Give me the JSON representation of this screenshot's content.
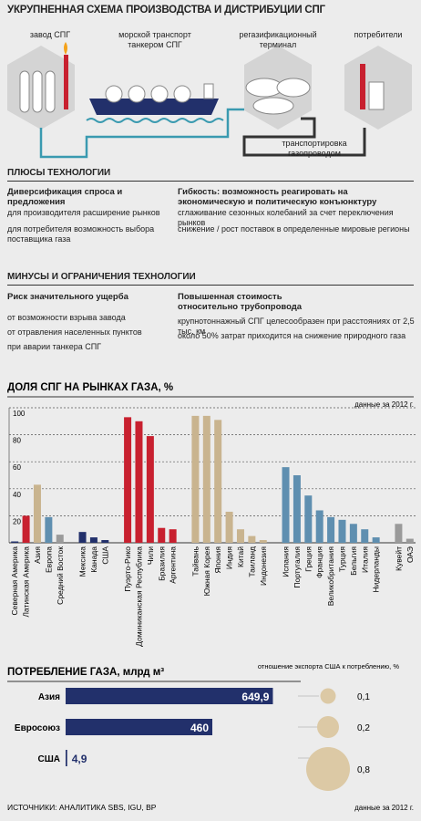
{
  "header": {
    "title": "УКРУПНЕННАЯ СХЕМА ПРОИЗВОДСТВА И ДИСТРИБУЦИИ СПГ"
  },
  "scheme": {
    "nodes": [
      {
        "label": "завод СПГ"
      },
      {
        "label": "морской транспорт танкером СПГ"
      },
      {
        "label": "регазификационный терминал"
      },
      {
        "label": "потребители"
      },
      {
        "label": "транспортировка газопроводом"
      }
    ]
  },
  "pros": {
    "title": "ПЛЮСЫ ТЕХНОЛОГИИ",
    "columns": [
      {
        "heading": "Диверсификация спроса и предложения",
        "items": [
          "для производителя расширение рынков",
          "для потребителя возможность выбора поставщика газа"
        ]
      },
      {
        "heading": "Гибкость: возможность реагировать на экономическую и политическую конъюнктуру",
        "items": [
          "сглаживание сезонных колебаний за счет переключения рынков",
          "снижение / рост поставок в определенные мировые регионы"
        ]
      }
    ]
  },
  "cons": {
    "title": "МИНУСЫ И ОГРАНИЧЕНИЯ ТЕХНОЛОГИИ",
    "columns": [
      {
        "heading": "Риск значительного ущерба",
        "items": [
          "от возможности взрыва завода",
          "от отравления населенных пунктов",
          "при аварии танкера СПГ"
        ]
      },
      {
        "heading": "Повышенная стоимость относительно трубопровода",
        "items": [
          "крупнотоннажный СПГ целесообразен при расстояниях от 2,5 тыс. км",
          "около 50% затрат приходится на снижение природного газа"
        ]
      }
    ]
  },
  "chart_data": [
    {
      "type": "bar",
      "title": "ДОЛЯ СПГ НА РЫНКАХ ГАЗА, %",
      "note": "данные за 2012 г.",
      "categories": [
        "Северная Америка",
        "Латинская Америка",
        "Азия",
        "Европа",
        "Средний Восток",
        null,
        "Мексика",
        "Канада",
        "США",
        null,
        "Пуэрто-Рико",
        "Доминиканская Республика",
        "Чили",
        "Бразилия",
        "Аргентина",
        null,
        "Тайвань",
        "Южная Корея",
        "Япония",
        "Индия",
        "Китай",
        "Таиланд",
        "Индонезия",
        null,
        "Испания",
        "Португалия",
        "Греция",
        "Франция",
        "Великобритания",
        "Турция",
        "Бельгия",
        "Италия",
        "Нидерланды",
        null,
        "Кувейт",
        "ОАЭ"
      ],
      "values": [
        1,
        20,
        43,
        19,
        6,
        null,
        8,
        4,
        2,
        null,
        93,
        90,
        79,
        11,
        10,
        null,
        94,
        94,
        91,
        23,
        10,
        5,
        2,
        null,
        56,
        50,
        35,
        24,
        19,
        17,
        14,
        10,
        4,
        null,
        14,
        3
      ],
      "colors": [
        "#22306b",
        "#c8202f",
        "#c9b48f",
        "#5f8fb0",
        "#9a9a9a",
        null,
        "#22306b",
        "#22306b",
        "#22306b",
        null,
        "#c8202f",
        "#c8202f",
        "#c8202f",
        "#c8202f",
        "#c8202f",
        null,
        "#c9b48f",
        "#c9b48f",
        "#c9b48f",
        "#c9b48f",
        "#c9b48f",
        "#c9b48f",
        "#c9b48f",
        null,
        "#5f8fb0",
        "#5f8fb0",
        "#5f8fb0",
        "#5f8fb0",
        "#5f8fb0",
        "#5f8fb0",
        "#5f8fb0",
        "#5f8fb0",
        "#5f8fb0",
        null,
        "#9a9a9a",
        "#9a9a9a"
      ],
      "ylim": [
        0,
        100
      ],
      "yticks": [
        20,
        40,
        60,
        80,
        100
      ],
      "grid": true
    },
    {
      "type": "hbar",
      "title": "ПОТРЕБЛЕНИЕ ГАЗА, млрд м³",
      "categories": [
        "Азия",
        "Евросоюз",
        "США"
      ],
      "values": [
        649.9,
        460,
        4.9
      ],
      "value_labels": [
        "649,9",
        "460",
        "4,9"
      ],
      "color": "#22306b",
      "xlim": [
        0,
        700
      ],
      "bubble_title": "отношение экспорта США к потреблению, %",
      "bubble_values": [
        0.1,
        0.2,
        0.8
      ],
      "bubble_labels": [
        "0,1",
        "0,2",
        "0,8"
      ],
      "bubble_color": "#dcc9a5"
    }
  ],
  "footer": {
    "source": "ИСТОЧНИКИ: АНАЛИТИКА SBS, IGU, BP",
    "note": "данные за 2012 г."
  }
}
